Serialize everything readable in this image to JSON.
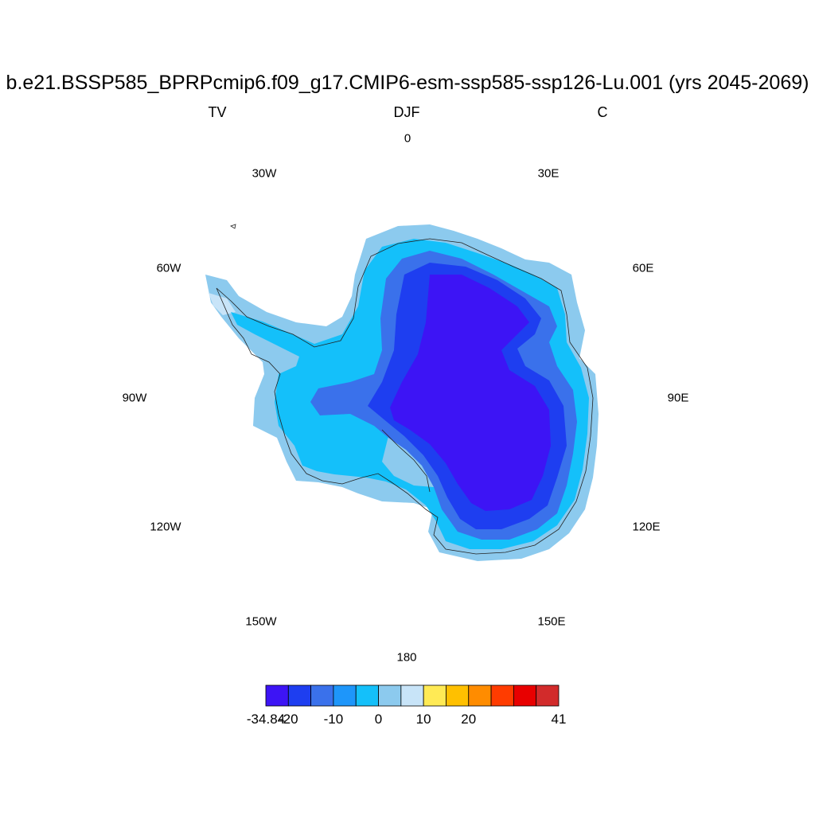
{
  "title": "b.e21.BSSP585_BPRPcmip6.f09_g17.CMIP6-esm-ssp585-ssp126-Lu.001 (yrs 2045-2069)",
  "subtitle": {
    "left": "TV",
    "center": "DJF",
    "right": "C"
  },
  "longitude_labels": [
    {
      "id": "lon-0",
      "text": "0"
    },
    {
      "id": "lon-30e",
      "text": "30E"
    },
    {
      "id": "lon-60e",
      "text": "60E"
    },
    {
      "id": "lon-90e",
      "text": "90E"
    },
    {
      "id": "lon-120e",
      "text": "120E"
    },
    {
      "id": "lon-150e",
      "text": "150E"
    },
    {
      "id": "lon-180",
      "text": "180"
    },
    {
      "id": "lon-150w",
      "text": "150W"
    },
    {
      "id": "lon-120w",
      "text": "120W"
    },
    {
      "id": "lon-90w",
      "text": "90W"
    },
    {
      "id": "lon-60w",
      "text": "60W"
    },
    {
      "id": "lon-30w",
      "text": "30W"
    }
  ],
  "colorbar": {
    "colors": [
      "#3d14f5",
      "#1e3ef0",
      "#3a71eb",
      "#1e96fa",
      "#14c0fa",
      "#8ccaee",
      "#c8e4f8",
      "#ffea55",
      "#ffc000",
      "#ff8c00",
      "#ff3c00",
      "#e80000",
      "#d22b2b"
    ],
    "labels": [
      {
        "text": "-34.84",
        "at_edge": 0
      },
      {
        "text": "-20",
        "at_edge": 1
      },
      {
        "text": "-10",
        "at_edge": 3
      },
      {
        "text": "0",
        "at_edge": 5
      },
      {
        "text": "10",
        "at_edge": 7
      },
      {
        "text": "20",
        "at_edge": 9
      },
      {
        "text": "41",
        "at_edge": 13
      }
    ]
  }
}
